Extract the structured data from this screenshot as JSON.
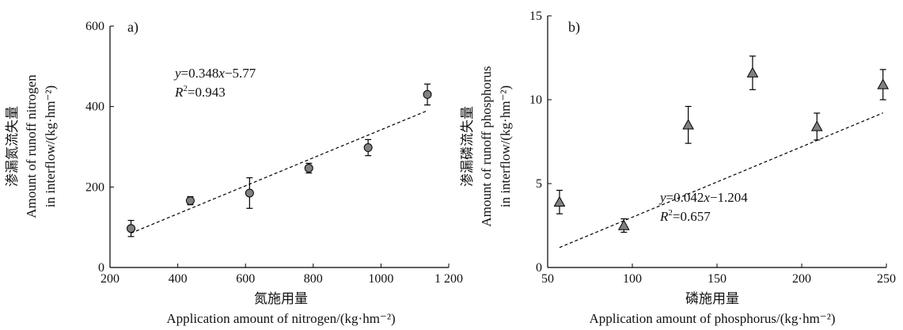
{
  "chart_data": [
    {
      "type": "scatter",
      "panel_label": "a)",
      "xlabel_zh": "氮施用量",
      "xlabel_en": "Application amount of nitrogen/(kg·hm⁻²)",
      "ylabel_zh": "渗漏氮流失量",
      "ylabel_en1": "Amount of runoff nitrogen",
      "ylabel_en2": "in interflow/(kg·hm⁻²)",
      "xlim": [
        200,
        1200
      ],
      "ylim": [
        0,
        600
      ],
      "xticks": [
        "200",
        "400",
        "600",
        "800",
        "1000",
        "1 200"
      ],
      "yticks": [
        "0",
        "200",
        "400",
        "600"
      ],
      "marker": "circle",
      "points": [
        {
          "x": 262,
          "y": 97,
          "err": 20
        },
        {
          "x": 437,
          "y": 166,
          "err": 10
        },
        {
          "x": 612,
          "y": 185,
          "err": 38
        },
        {
          "x": 787,
          "y": 247,
          "err": 12
        },
        {
          "x": 962,
          "y": 298,
          "err": 20
        },
        {
          "x": 1137,
          "y": 430,
          "err": 26
        }
      ],
      "fit": {
        "slope": 0.348,
        "intercept": -5.77,
        "x_range": [
          262,
          1137
        ]
      },
      "equation": {
        "y_var": "y",
        "rest": "=0.348",
        "x_var": "x",
        "tail": "−5.77",
        "r_var": "R",
        "r_sup": "2",
        "r_val": "=0.943"
      }
    },
    {
      "type": "scatter",
      "panel_label": "b)",
      "xlabel_zh": "磷施用量",
      "xlabel_en": "Application amount of  phosphorus/(kg·hm⁻²)",
      "ylabel_zh": "渗漏磷流失量",
      "ylabel_en1": "Amount of runoff phosphorus",
      "ylabel_en2": "in interflow/(kg·hm⁻²)",
      "xlim": [
        50,
        250
      ],
      "ylim": [
        0,
        15
      ],
      "xticks": [
        "50",
        "100",
        "150",
        "200",
        "250"
      ],
      "yticks": [
        "0",
        "5",
        "10",
        "15"
      ],
      "marker": "triangle",
      "points": [
        {
          "x": 57,
          "y": 3.9,
          "err": 0.7
        },
        {
          "x": 95,
          "y": 2.5,
          "err": 0.4
        },
        {
          "x": 133,
          "y": 8.5,
          "err": 1.1
        },
        {
          "x": 171,
          "y": 11.6,
          "err": 1.0
        },
        {
          "x": 209,
          "y": 8.4,
          "err": 0.8
        },
        {
          "x": 248,
          "y": 10.9,
          "err": 0.9
        }
      ],
      "fit": {
        "slope": 0.042,
        "intercept": -1.204,
        "x_range": [
          57,
          248
        ]
      },
      "equation": {
        "y_var": "y",
        "rest": "=0.042",
        "x_var": "x",
        "tail": "−1.204",
        "r_var": "R",
        "r_sup": "2",
        "r_val": "=0.657"
      }
    }
  ]
}
